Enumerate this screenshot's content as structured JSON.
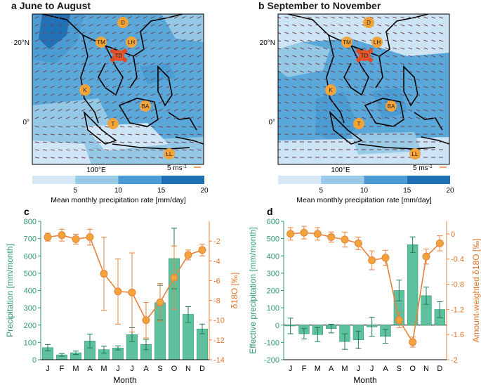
{
  "maps": [
    {
      "panel": "a",
      "title": "June to August",
      "scale": "5 ms",
      "stations": [
        "D",
        "TM",
        "LH",
        "TD",
        "K",
        "BA",
        "T",
        "LL"
      ]
    },
    {
      "panel": "b",
      "title": "September to November",
      "scale": "5 ms",
      "stations": [
        "D",
        "TM",
        "LH",
        "TD",
        "K",
        "BA",
        "T",
        "LL"
      ]
    }
  ],
  "map_axes": {
    "lat_20": "20°N",
    "lat_0": "0°",
    "lon_100": "100°E"
  },
  "colorbar": {
    "label": "Mean monthly precipitation rate [mm/day]",
    "ticks": [
      "5",
      "10",
      "15",
      "20"
    ],
    "colors": [
      "#d3e7f5",
      "#98c9e6",
      "#4a9bd3",
      "#1e6fb3"
    ]
  },
  "colors": {
    "bar": "#5fc09e",
    "bar_edge": "#2d9a72",
    "line": "#e8823a",
    "green_label": "#2e9a6e",
    "orange_label": "#e0742a",
    "sea": "#5aa7da"
  },
  "chart_data": [
    {
      "panel": "c",
      "type": "bar",
      "categories": [
        "J",
        "F",
        "M",
        "A",
        "M",
        "J",
        "J",
        "A",
        "S",
        "O",
        "N",
        "D"
      ],
      "xlabel": "Month",
      "ylabel": "Precipitation [mm/month]",
      "y2label": "δ18O [‰]",
      "ylim": [
        0,
        800
      ],
      "yticks": [
        0,
        100,
        200,
        300,
        400,
        500,
        600,
        700,
        800
      ],
      "y2lim": [
        -14,
        0
      ],
      "y2ticks": [
        -14,
        -12,
        -10,
        -8,
        -6,
        -4,
        -2
      ],
      "y2ticklabels": [
        "-14",
        "-12",
        "-10",
        "-8",
        "-6",
        "-4",
        "-2"
      ],
      "series": [
        {
          "axis": "left",
          "kind": "bar",
          "values": [
            70,
            28,
            40,
            108,
            58,
            68,
            145,
            88,
            330,
            585,
            262,
            178
          ],
          "err": [
            18,
            8,
            10,
            40,
            20,
            12,
            40,
            30,
            100,
            175,
            45,
            28
          ]
        },
        {
          "axis": "right",
          "kind": "line",
          "values": [
            -1.6,
            -1.4,
            -1.8,
            -1.6,
            -5.3,
            -7.1,
            -7.2,
            -10.0,
            -8.2,
            -5.7,
            -3.4,
            -2.9
          ],
          "err": [
            0.4,
            0.6,
            0.5,
            0.8,
            3.7,
            3.3,
            4.0,
            1.8,
            1.9,
            3.2,
            0.5,
            0.6
          ]
        }
      ]
    },
    {
      "panel": "d",
      "type": "bar",
      "categories": [
        "J",
        "F",
        "M",
        "A",
        "M",
        "J",
        "J",
        "A",
        "S",
        "O",
        "N",
        "D"
      ],
      "xlabel": "Month",
      "ylabel": "Effective precipitation [mm/month]",
      "y2label": "Amount-weighted δ18O [‰]",
      "ylim": [
        -200,
        600
      ],
      "yticks": [
        -200,
        -100,
        0,
        100,
        200,
        300,
        400,
        500,
        600
      ],
      "y2lim": [
        -2,
        0.2
      ],
      "y2ticks": [
        -2,
        -1.6,
        -1.2,
        -0.8,
        -0.4,
        0
      ],
      "y2ticklabels": [
        "-2",
        "-1.6",
        "-1.2",
        "-0.8",
        "-0.4",
        "0"
      ],
      "series": [
        {
          "axis": "left",
          "kind": "bar",
          "values": [
            -5,
            -50,
            -55,
            -20,
            -95,
            -85,
            -10,
            -65,
            200,
            465,
            170,
            90
          ],
          "err": [
            45,
            30,
            40,
            25,
            45,
            50,
            55,
            40,
            60,
            45,
            50,
            45
          ]
        },
        {
          "axis": "right",
          "kind": "line",
          "values": [
            0.0,
            0.02,
            0.0,
            -0.05,
            -0.09,
            -0.15,
            -0.42,
            -0.38,
            -1.37,
            -1.72,
            -0.36,
            -0.15
          ],
          "err": [
            0.1,
            0.1,
            0.1,
            0.08,
            0.12,
            0.1,
            0.15,
            0.12,
            0.12,
            0.08,
            0.12,
            0.12
          ]
        }
      ]
    }
  ]
}
